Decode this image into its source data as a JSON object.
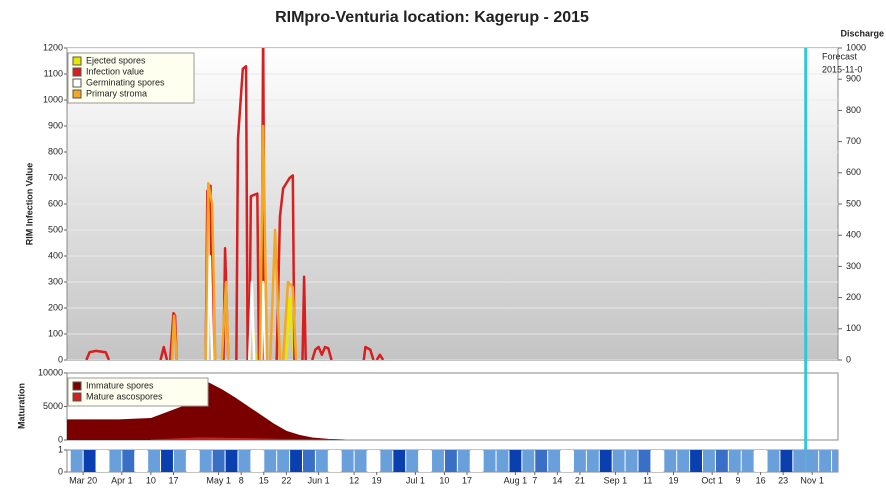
{
  "chart_data": [
    {
      "type": "line",
      "title": "RIMpro-Venturia location:  Kagerup - 2015",
      "ylabel": "RIM Infection Value",
      "y2label": "Discharge",
      "annotations": [
        "Forecast",
        "2015-11-0"
      ],
      "vlines": [
        303
      ],
      "xlim": [
        74,
        313
      ],
      "ylim": [
        0,
        1200
      ],
      "yticks": [
        0,
        100,
        200,
        300,
        400,
        500,
        600,
        700,
        800,
        900,
        1000,
        1100,
        1200
      ],
      "y2lim": [
        0,
        1000
      ],
      "y2ticks": [
        0,
        100,
        200,
        300,
        400,
        500,
        600,
        700,
        800,
        900,
        1000
      ],
      "grid": true,
      "legend": "upper left",
      "series": [
        {
          "name": "Ejected spores",
          "color": "#e8e800",
          "axis": "y2",
          "x": [
            117,
            118,
            119.5,
            null,
            130.5,
            131.5,
            132.5,
            null,
            142,
            143,
            144.5
          ],
          "values": [
            0,
            250,
            0,
            null,
            0,
            120,
            0,
            null,
            0,
            200,
            0
          ]
        },
        {
          "name": "Infection value",
          "color": "#d81e1e",
          "x": [
            80,
            81,
            83,
            86,
            87,
            null,
            103,
            104,
            105,
            null,
            106,
            107,
            107.5,
            108,
            null,
            117,
            117.5,
            118.5,
            119,
            null,
            122.5,
            123,
            124,
            null,
            126.5,
            127,
            128.5,
            129.5,
            130,
            null,
            130.5,
            131,
            133,
            133.5,
            null,
            134.3,
            134.8,
            135.3,
            null,
            139,
            140,
            141,
            143,
            144,
            144.5,
            null,
            147,
            147.5,
            148,
            null,
            150,
            151,
            152,
            153,
            154,
            155,
            156,
            null,
            166,
            166.5,
            168,
            169,
            null,
            170,
            171,
            172
          ],
          "values": [
            0,
            30,
            35,
            30,
            0,
            null,
            0,
            50,
            0,
            null,
            0,
            180,
            170,
            0,
            null,
            0,
            650,
            670,
            0,
            null,
            0,
            430,
            0,
            null,
            0,
            850,
            1120,
            1130,
            0,
            null,
            0,
            630,
            640,
            0,
            null,
            0,
            1300,
            0,
            null,
            0,
            550,
            660,
            700,
            710,
            0,
            null,
            0,
            320,
            0,
            null,
            0,
            40,
            50,
            20,
            50,
            45,
            0,
            null,
            0,
            50,
            40,
            0,
            null,
            0,
            20,
            0
          ]
        },
        {
          "name": "Germinating spores",
          "color": "#ffffff",
          "x": [
            117.5,
            118.3,
            119,
            null,
            130.5,
            131.3,
            132,
            null,
            134.2,
            134.8,
            135.5
          ],
          "values": [
            0,
            400,
            0,
            null,
            0,
            300,
            0,
            null,
            0,
            300,
            0
          ]
        },
        {
          "name": "Primary stroma",
          "color": "#f5a623",
          "x": [
            106.5,
            107.2,
            108,
            null,
            117,
            117.8,
            119,
            120,
            null,
            122,
            123.3,
            124,
            null,
            133.8,
            134.8,
            136,
            null,
            137,
            138.5,
            140,
            null,
            141,
            142.5,
            144,
            145
          ],
          "values": [
            0,
            170,
            0,
            null,
            0,
            680,
            600,
            0,
            null,
            0,
            300,
            0,
            null,
            0,
            900,
            0,
            null,
            0,
            500,
            0,
            null,
            0,
            300,
            280,
            0
          ]
        }
      ]
    },
    {
      "type": "area",
      "ylabel": "Maturation",
      "xlim": [
        74,
        313
      ],
      "ylim": [
        0,
        10000
      ],
      "yticks": [
        0,
        5000,
        10000
      ],
      "legend": "upper left",
      "series": [
        {
          "name": "Immature spores",
          "color": "#7a0000",
          "x": [
            74,
            80,
            90,
            100,
            110,
            114,
            118,
            122,
            126,
            130,
            134,
            138,
            142,
            146,
            150,
            155,
            160
          ],
          "values": [
            3000,
            3000,
            3000,
            3200,
            5000,
            9000,
            8500,
            7500,
            6300,
            5000,
            3700,
            2400,
            1300,
            700,
            300,
            100,
            0
          ]
        },
        {
          "name": "Mature ascospores",
          "color": "#d02020",
          "x": [
            100,
            110,
            114,
            118,
            125,
            130,
            140,
            160
          ],
          "values": [
            0,
            200,
            300,
            300,
            250,
            200,
            100,
            0
          ]
        }
      ]
    },
    {
      "type": "strip",
      "xlim": [
        74,
        313
      ],
      "ylim": [
        0,
        1
      ],
      "yticks": [
        0,
        1
      ],
      "colors": [
        "#a8e0f8",
        "#0a3fb0"
      ],
      "xticks": [
        {
          "value": 79,
          "label": "Mar 20"
        },
        {
          "value": 91,
          "label": "Apr 1"
        },
        {
          "value": 100,
          "label": "10"
        },
        {
          "value": 107,
          "label": "17"
        },
        {
          "value": 121,
          "label": "May 1"
        },
        {
          "value": 128,
          "label": "8"
        },
        {
          "value": 135,
          "label": "15"
        },
        {
          "value": 142,
          "label": "22"
        },
        {
          "value": 152,
          "label": "Jun 1"
        },
        {
          "value": 163,
          "label": "12"
        },
        {
          "value": 170,
          "label": "19"
        },
        {
          "value": 182,
          "label": "Jul 1"
        },
        {
          "value": 191,
          "label": "10"
        },
        {
          "value": 198,
          "label": "17"
        },
        {
          "value": 213,
          "label": "Aug 1"
        },
        {
          "value": 219,
          "label": "7"
        },
        {
          "value": 226,
          "label": "14"
        },
        {
          "value": 233,
          "label": "21"
        },
        {
          "value": 244,
          "label": "Sep 1"
        },
        {
          "value": 254,
          "label": "11"
        },
        {
          "value": 262,
          "label": "19"
        },
        {
          "value": 274,
          "label": "Oct 1"
        },
        {
          "value": 282,
          "label": "9"
        },
        {
          "value": 289,
          "label": "16"
        },
        {
          "value": 296,
          "label": "23"
        },
        {
          "value": 305,
          "label": "Nov 1"
        }
      ],
      "x": [
        75,
        79,
        83,
        87,
        91,
        95,
        99,
        103,
        107,
        111,
        115,
        119,
        123,
        127,
        131,
        135,
        139,
        143,
        147,
        151,
        155,
        159,
        163,
        167,
        171,
        175,
        179,
        183,
        187,
        191,
        195,
        199,
        203,
        207,
        211,
        215,
        219,
        223,
        227,
        231,
        235,
        239,
        243,
        247,
        251,
        255,
        259,
        263,
        267,
        271,
        275,
        279,
        283,
        287,
        291,
        295,
        299,
        303,
        307,
        311
      ],
      "values": [
        0.4,
        1,
        0,
        0.4,
        0.7,
        0,
        0.4,
        1,
        0.4,
        0,
        0.4,
        0.7,
        1,
        0.4,
        0,
        0.4,
        0.4,
        1,
        0.7,
        0.4,
        0,
        0.4,
        0.4,
        0,
        0.4,
        1,
        0.4,
        0,
        0.4,
        0.7,
        0.4,
        0,
        0.4,
        0.4,
        1,
        0.4,
        0.7,
        0.4,
        0,
        0.4,
        0.4,
        1,
        0.4,
        0.4,
        0.7,
        0,
        0.4,
        0.4,
        1,
        0.4,
        0.7,
        0.4,
        0.4,
        0,
        0.4,
        1,
        0.4,
        0.4,
        0.4,
        0.4
      ]
    }
  ]
}
